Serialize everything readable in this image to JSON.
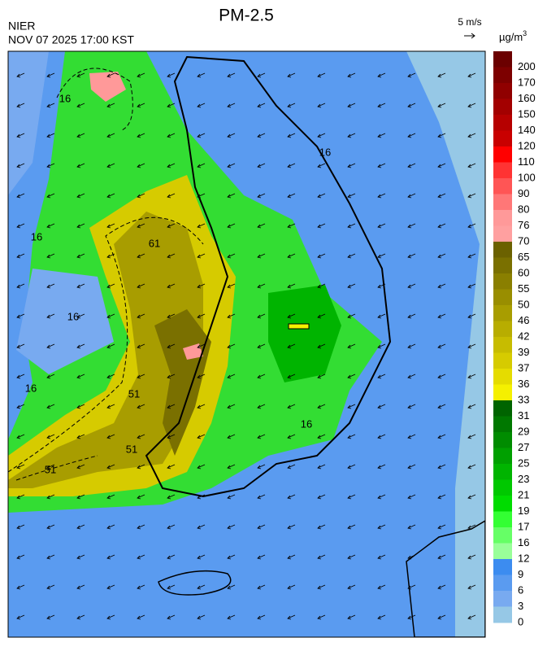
{
  "header": {
    "title": "PM-2.5",
    "agency": "NIER",
    "datetime": "NOV 07 2025 17:00 KST"
  },
  "wind_scale": {
    "label": "5 m/s"
  },
  "colorbar": {
    "unit": "µg/m",
    "unit_sup": "3",
    "labels": [
      "200",
      "170",
      "160",
      "150",
      "140",
      "120",
      "110",
      "100",
      "90",
      "80",
      "76",
      "70",
      "65",
      "60",
      "55",
      "50",
      "46",
      "42",
      "39",
      "37",
      "36",
      "33",
      "31",
      "29",
      "27",
      "25",
      "23",
      "21",
      "19",
      "17",
      "16",
      "12",
      "9",
      "6",
      "3",
      "0"
    ],
    "colors": [
      "#6b0000",
      "#7d0000",
      "#900000",
      "#a30000",
      "#b60000",
      "#c90000",
      "#ff0000",
      "#ff3333",
      "#ff5555",
      "#ff7777",
      "#ff9999",
      "#ffa0a0",
      "#6b6100",
      "#7a7000",
      "#8a7f00",
      "#998e00",
      "#a89d00",
      "#b8ad00",
      "#c7bc00",
      "#d6cb00",
      "#e5dc00",
      "#f5f000",
      "#006400",
      "#007800",
      "#008c00",
      "#00a000",
      "#00b400",
      "#00c800",
      "#00dc00",
      "#33ff33",
      "#66ff66",
      "#99ff99",
      "#3c8cf0",
      "#5a9bf0",
      "#78aaf0",
      "#96c8e6"
    ]
  },
  "map": {
    "contour_labels": [
      "16",
      "16",
      "61",
      "51",
      "51",
      "51",
      "16",
      "16",
      "16",
      "16"
    ]
  }
}
